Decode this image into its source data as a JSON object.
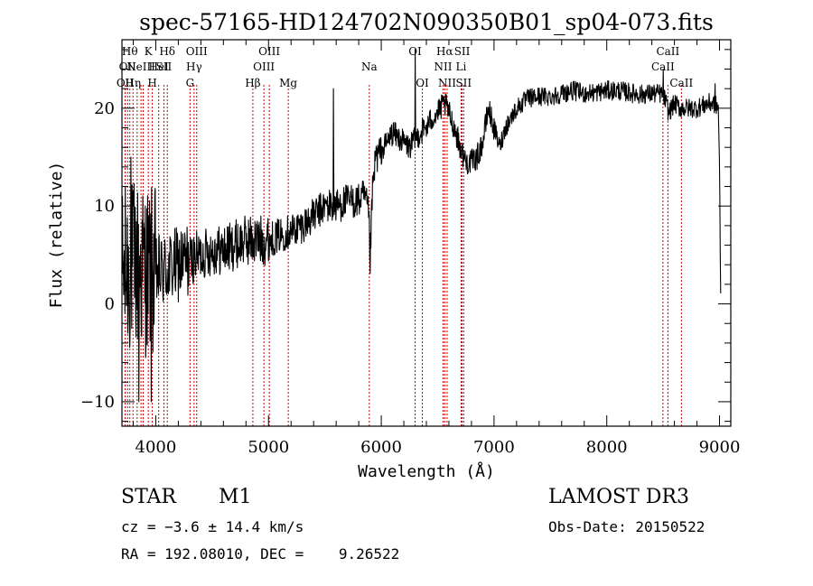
{
  "chart_data": {
    "type": "line",
    "title": "spec-57165-HD124702N090350B01_sp04-073.fits",
    "xlabel": "Wavelength (Å)",
    "ylabel": "Flux (relative)",
    "xlim": [
      3700,
      9100
    ],
    "ylim": [
      -12.5,
      27
    ],
    "x_ticks": [
      4000,
      5000,
      6000,
      7000,
      8000,
      9000
    ],
    "y_ticks": [
      -10,
      0,
      10,
      20
    ],
    "x_tick_labels": [
      "4000",
      "5000",
      "6000",
      "7000",
      "8000",
      "9000"
    ],
    "y_tick_labels": [
      "−10",
      "0",
      "10",
      "20"
    ],
    "series": [
      {
        "name": "flux",
        "anchors_x": [
          3700,
          3800,
          3900,
          4000,
          4100,
          4200,
          4300,
          4400,
          4500,
          4600,
          4700,
          4800,
          4900,
          5000,
          5100,
          5200,
          5300,
          5400,
          5500,
          5600,
          5700,
          5800,
          5850,
          5890,
          5900,
          5920,
          5950,
          6000,
          6050,
          6100,
          6150,
          6200,
          6250,
          6300,
          6350,
          6400,
          6450,
          6500,
          6560,
          6600,
          6650,
          6700,
          6750,
          6800,
          6850,
          6900,
          6950,
          7000,
          7050,
          7100,
          7200,
          7300,
          7400,
          7500,
          7600,
          7700,
          7800,
          7900,
          8000,
          8100,
          8200,
          8300,
          8400,
          8500,
          8550,
          8600,
          8650,
          8700,
          8800,
          8900,
          8950,
          8990,
          9000,
          9010
        ],
        "anchors_y": [
          3,
          4,
          3.5,
          3,
          3.5,
          4,
          4.5,
          5,
          5.5,
          5.5,
          6,
          6.5,
          6.5,
          6.5,
          7,
          7.5,
          8,
          9,
          10,
          10,
          10.5,
          10.5,
          11,
          9,
          4,
          11,
          15,
          15.5,
          16.5,
          17.5,
          17,
          16.5,
          16,
          16.8,
          17.5,
          18,
          19,
          19.5,
          20.5,
          19.5,
          18,
          16,
          14.5,
          14.5,
          15,
          16.5,
          20,
          18,
          16,
          18,
          20,
          21,
          21.2,
          21.2,
          21.5,
          21.8,
          21.5,
          21.6,
          21.8,
          21.8,
          21.6,
          21.4,
          21.5,
          21.5,
          19.5,
          20.5,
          20,
          20,
          20,
          20.5,
          20.5,
          20,
          14,
          0.5
        ],
        "spikes": [
          {
            "x": 5577,
            "y": 22
          },
          {
            "x": 6300,
            "y": 26
          },
          {
            "x": 6364,
            "y": 19
          },
          {
            "x": 3850,
            "y": -10
          },
          {
            "x": 3960,
            "y": -10
          },
          {
            "x": 3780,
            "y": 15
          },
          {
            "x": 8500,
            "y": 24
          },
          {
            "x": 8960,
            "y": 22.5
          }
        ],
        "noise": [
          {
            "from": 3700,
            "to": 4000,
            "amp": 9
          },
          {
            "from": 4000,
            "to": 4300,
            "amp": 4
          },
          {
            "from": 4300,
            "to": 5000,
            "amp": 2.6
          },
          {
            "from": 5000,
            "to": 6000,
            "amp": 1.8
          },
          {
            "from": 6000,
            "to": 7000,
            "amp": 1.3
          },
          {
            "from": 7000,
            "to": 9100,
            "amp": 1.0
          }
        ],
        "samples": 1500
      }
    ],
    "lines": [
      {
        "x": 3728,
        "labels": [
          {
            "row": 2,
            "text": "OII"
          }
        ]
      },
      {
        "x": 3750,
        "labels": [
          {
            "row": 1,
            "text": "OII"
          }
        ]
      },
      {
        "x": 3770,
        "labels": [
          {
            "row": 0,
            "text": "Hθ"
          }
        ]
      },
      {
        "x": 3798,
        "labels": [
          {
            "row": 2,
            "text": "Hη"
          }
        ]
      },
      {
        "x": 3835,
        "labels": []
      },
      {
        "x": 3869,
        "labels": [
          {
            "row": 1,
            "text": "NeIII"
          }
        ]
      },
      {
        "x": 3889,
        "labels": []
      },
      {
        "x": 3934,
        "labels": [
          {
            "row": 0,
            "text": "K"
          }
        ]
      },
      {
        "x": 3969,
        "labels": [
          {
            "row": 2,
            "text": "H"
          }
        ]
      },
      {
        "x": 4026,
        "labels": [
          {
            "row": 1,
            "text": "HeI"
          }
        ]
      },
      {
        "x": 4072,
        "labels": [
          {
            "row": 1,
            "text": "SII"
          }
        ]
      },
      {
        "x": 4102,
        "labels": [
          {
            "row": 0,
            "text": "Hδ"
          }
        ]
      },
      {
        "x": 4304,
        "labels": [
          {
            "row": 2,
            "text": "G"
          }
        ]
      },
      {
        "x": 4340,
        "labels": [
          {
            "row": 1,
            "text": "Hγ"
          }
        ]
      },
      {
        "x": 4363,
        "labels": [
          {
            "row": 0,
            "text": "OIII"
          }
        ]
      },
      {
        "x": 4861,
        "labels": [
          {
            "row": 2,
            "text": "Hβ"
          }
        ]
      },
      {
        "x": 4959,
        "labels": [
          {
            "row": 1,
            "text": "OIII"
          }
        ]
      },
      {
        "x": 5007,
        "labels": [
          {
            "row": 0,
            "text": "OIII"
          }
        ]
      },
      {
        "x": 5175,
        "labels": [
          {
            "row": 2,
            "text": "Mg"
          }
        ]
      },
      {
        "x": 5894,
        "labels": [
          {
            "row": 1,
            "text": "Na"
          }
        ]
      },
      {
        "x": 6300,
        "labels": [
          {
            "row": 0,
            "text": "OI"
          }
        ]
      },
      {
        "x": 6364,
        "labels": [
          {
            "row": 2,
            "text": "OI"
          }
        ]
      },
      {
        "x": 6548,
        "labels": [
          {
            "row": 1,
            "text": "NII"
          }
        ]
      },
      {
        "x": 6563,
        "labels": [
          {
            "row": 0,
            "text": "Hα"
          }
        ]
      },
      {
        "x": 6584,
        "labels": [
          {
            "row": 2,
            "text": "NII"
          }
        ]
      },
      {
        "x": 6708,
        "labels": [
          {
            "row": 1,
            "text": "Li"
          }
        ]
      },
      {
        "x": 6717,
        "labels": [
          {
            "row": 0,
            "text": "SII"
          }
        ]
      },
      {
        "x": 6731,
        "labels": [
          {
            "row": 2,
            "text": "SII"
          }
        ]
      },
      {
        "x": 8498,
        "labels": [
          {
            "row": 1,
            "text": "CaII"
          }
        ]
      },
      {
        "x": 8542,
        "labels": [
          {
            "row": 0,
            "text": "CaII"
          }
        ]
      },
      {
        "x": 8662,
        "labels": [
          {
            "row": 2,
            "text": "CaII"
          }
        ]
      }
    ],
    "colors": {
      "spectrum": "#000000",
      "lines": "#cc0000",
      "axes": "#000000"
    }
  },
  "info": {
    "object_class": "STAR",
    "subclass": "M1",
    "cz": "cz = −3.6 ± 14.4 km/s",
    "coords": "RA = 192.08010, DEC =    9.26522",
    "survey": "LAMOST DR3",
    "obs_date": "Obs-Date: 20150522"
  }
}
